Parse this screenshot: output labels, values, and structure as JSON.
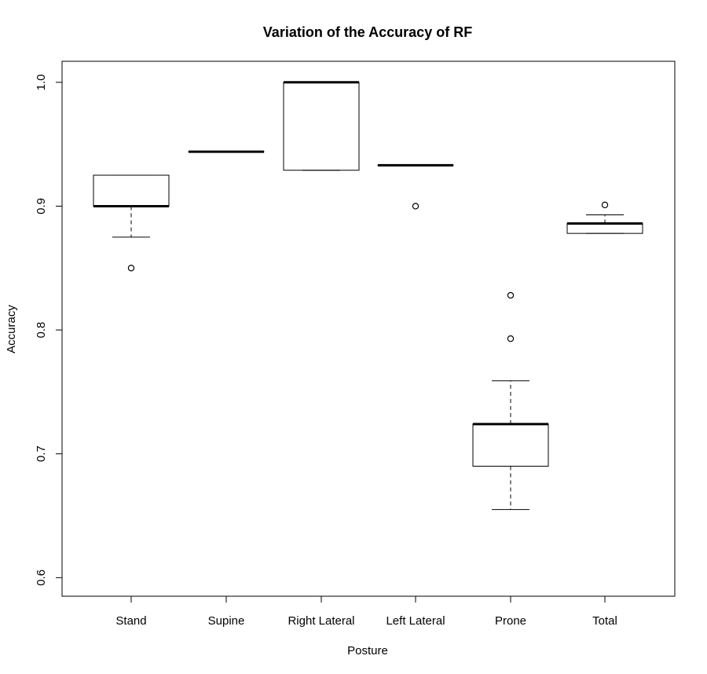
{
  "chart_data": {
    "type": "boxplot",
    "title": "Variation of the Accuracy of RF",
    "xlabel": "Posture",
    "ylabel": "Accuracy",
    "ylim": [
      0.585,
      1.017
    ],
    "yticks": [
      "0.6",
      "0.7",
      "0.8",
      "0.9",
      "1.0"
    ],
    "ytick_values": [
      0.6,
      0.7,
      0.8,
      0.9,
      1.0
    ],
    "categories": [
      "Stand",
      "Supine",
      "Right Lateral",
      "Left Lateral",
      "Prone",
      "Total"
    ],
    "boxes": [
      {
        "category": "Stand",
        "whisker_low": 0.875,
        "q1": 0.9,
        "median": 0.9,
        "q3": 0.925,
        "whisker_high": 0.925,
        "outliers": [
          0.85
        ]
      },
      {
        "category": "Supine",
        "whisker_low": 0.944,
        "q1": 0.944,
        "median": 0.944,
        "q3": 0.944,
        "whisker_high": 0.944,
        "outliers": []
      },
      {
        "category": "Right Lateral",
        "whisker_low": 0.929,
        "q1": 0.929,
        "median": 1.0,
        "q3": 1.0,
        "whisker_high": 1.0,
        "outliers": []
      },
      {
        "category": "Left Lateral",
        "whisker_low": 0.933,
        "q1": 0.933,
        "median": 0.933,
        "q3": 0.933,
        "whisker_high": 0.933,
        "outliers": [
          0.9
        ]
      },
      {
        "category": "Prone",
        "whisker_low": 0.655,
        "q1": 0.69,
        "median": 0.724,
        "q3": 0.724,
        "whisker_high": 0.759,
        "outliers": [
          0.793,
          0.828
        ]
      },
      {
        "category": "Total",
        "whisker_low": 0.878,
        "q1": 0.878,
        "median": 0.886,
        "q3": 0.886,
        "whisker_high": 0.893,
        "outliers": [
          0.901
        ]
      }
    ]
  }
}
